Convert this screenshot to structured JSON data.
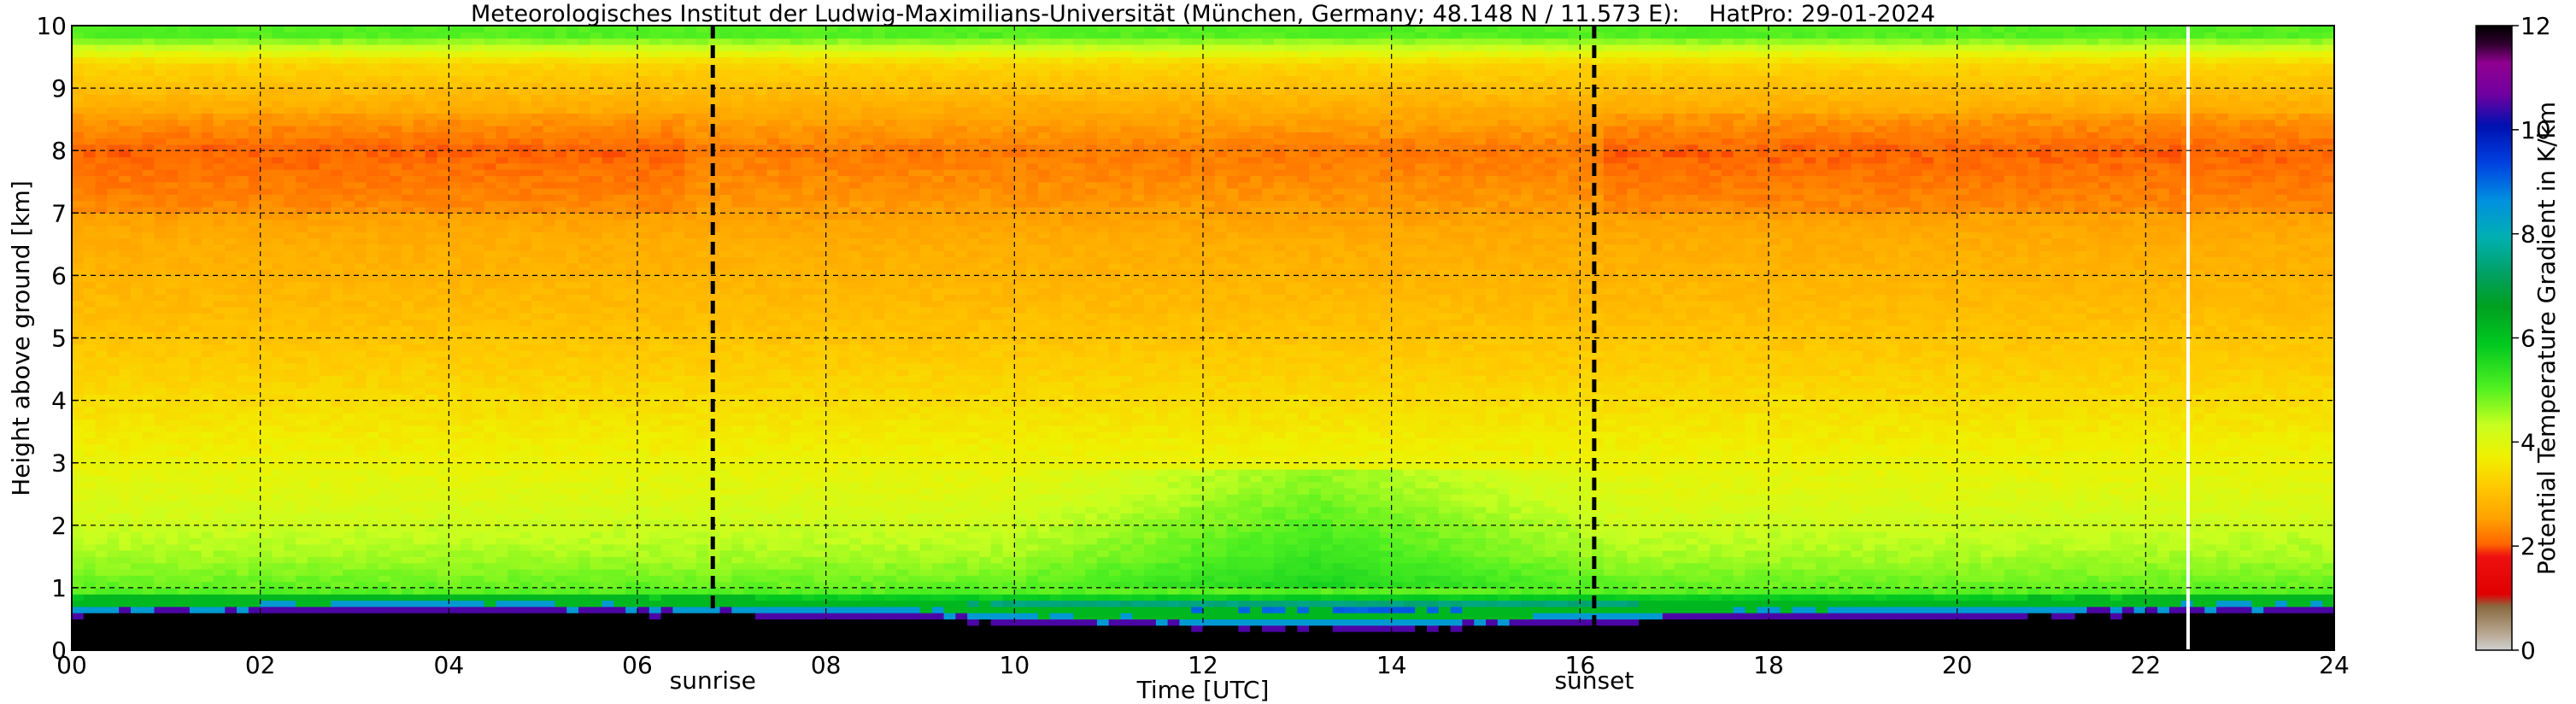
{
  "chart_data": {
    "type": "heatmap",
    "title": "Meteorologisches Institut der Ludwig-Maximilians-Universität (München, Germany; 48.148 N / 11.573 E):    HatPro: 29-01-2024",
    "xlabel": "Time [UTC]",
    "ylabel": "Height above ground [km]",
    "xlim": [
      0,
      24
    ],
    "ylim": [
      0,
      10
    ],
    "x_ticks": [
      "00",
      "02",
      "04",
      "06",
      "08",
      "10",
      "12",
      "14",
      "16",
      "18",
      "20",
      "22",
      "24"
    ],
    "y_ticks": [
      "0",
      "1",
      "2",
      "3",
      "4",
      "5",
      "6",
      "7",
      "8",
      "9",
      "10"
    ],
    "grid": true,
    "colorbar": {
      "label": "Potential Temperature Gradient in K/km",
      "range": [
        0,
        12
      ],
      "ticks": [
        "0",
        "2",
        "4",
        "6",
        "8",
        "10",
        "12"
      ]
    },
    "markers": [
      {
        "label": "sunrise",
        "time": 6.8
      },
      {
        "label": "sunset",
        "time": 16.15
      }
    ],
    "data_gap_time": 22.45,
    "profile_heights_km": [
      0.5,
      0.9,
      1.5,
      2.5,
      3.5,
      4.5,
      5.5,
      6.5,
      7.3,
      8.0,
      8.7,
      9.4,
      9.85
    ],
    "profile_values_Kkm": [
      11.5,
      5.0,
      4.5,
      4.0,
      3.6,
      3.2,
      2.9,
      2.7,
      2.4,
      2.2,
      2.7,
      3.3,
      5.0
    ],
    "surface_layer_top_km": {
      "times": [
        0,
        4,
        7,
        9,
        10,
        12,
        14,
        16,
        18,
        21,
        24
      ],
      "values": [
        0.55,
        0.62,
        0.55,
        0.5,
        0.42,
        0.35,
        0.33,
        0.42,
        0.5,
        0.55,
        0.6
      ]
    }
  }
}
